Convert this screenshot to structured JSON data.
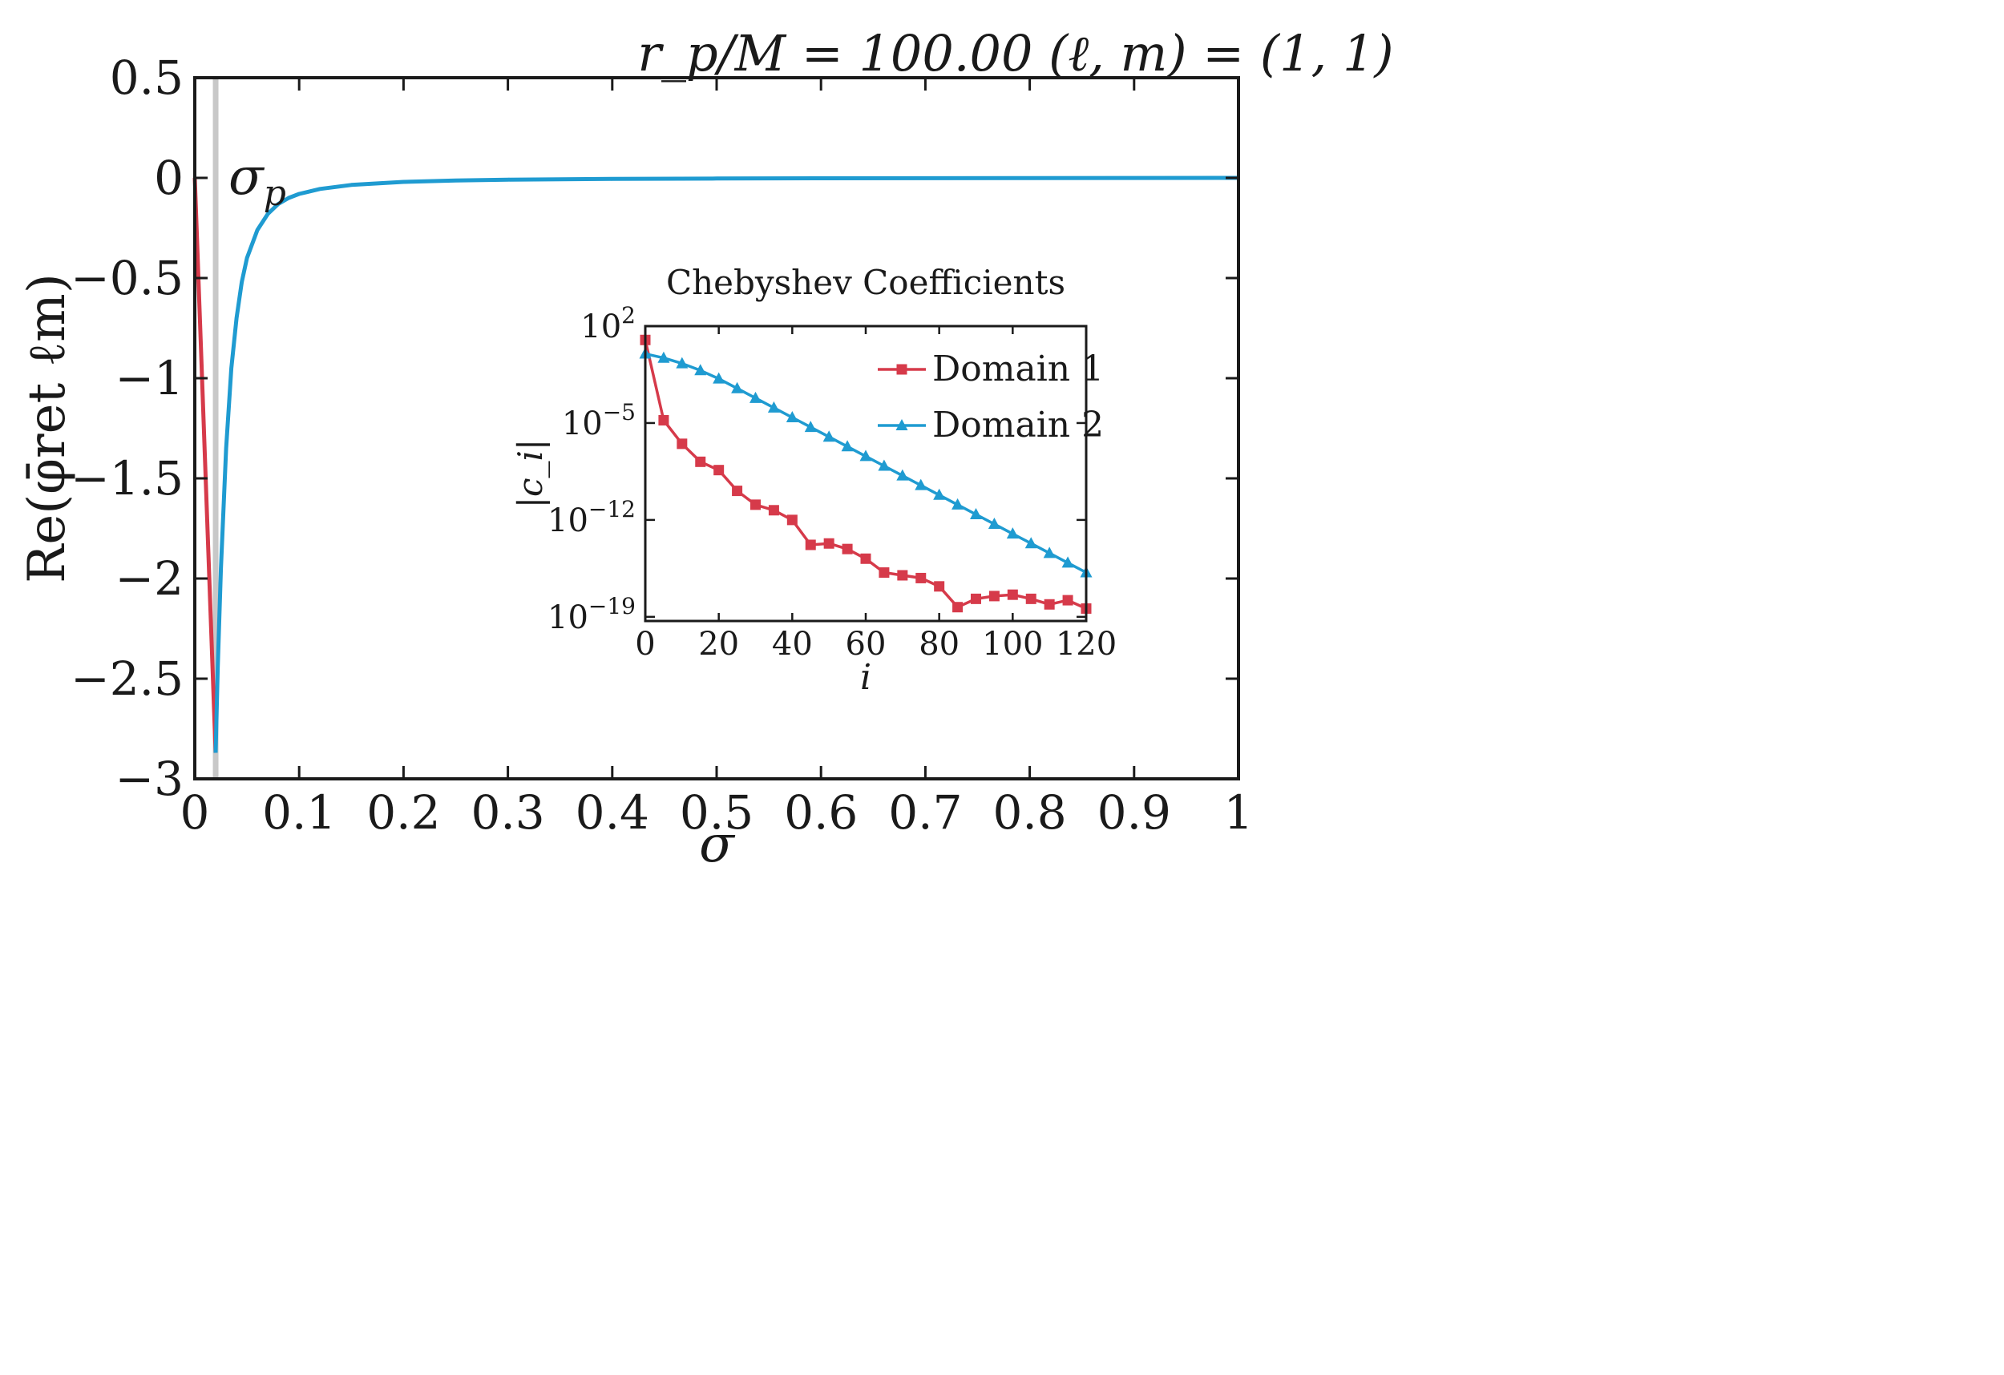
{
  "chart_data": [
    {
      "type": "line",
      "title": "r_p/M = 100.00   (ℓ, m) = (1, 1)",
      "xlabel": "σ",
      "ylabel": "Re(φ̄ret ℓm)",
      "xlim": [
        0,
        1
      ],
      "ylim": [
        -3,
        0.5
      ],
      "xticks": [
        0,
        0.1,
        0.2,
        0.3,
        0.4,
        0.5,
        0.6,
        0.7,
        0.8,
        0.9,
        1
      ],
      "xtick_labels": [
        "0",
        "0.1",
        "0.2",
        "0.3",
        "0.4",
        "0.5",
        "0.6",
        "0.7",
        "0.8",
        "0.9",
        "1"
      ],
      "yticks": [
        0.5,
        0,
        -0.5,
        -1,
        -1.5,
        -2,
        -2.5,
        -3
      ],
      "ytick_labels": [
        "0.5",
        "0",
        "−0.5",
        "−1",
        "−1.5",
        "−2",
        "−2.5",
        "−3"
      ],
      "annotation": {
        "text": "σ",
        "sub": "p",
        "x": 0.02
      },
      "marker_line_x": 0.02,
      "grid": false,
      "series": [
        {
          "name": "Domain 1",
          "color": "#d63a4a",
          "x": [
            0,
            0.02
          ],
          "y": [
            0,
            -2.87
          ]
        },
        {
          "name": "Domain 2",
          "color": "#1f9bd1",
          "x": [
            0.02,
            0.022,
            0.025,
            0.03,
            0.035,
            0.04,
            0.045,
            0.05,
            0.06,
            0.07,
            0.08,
            0.09,
            0.1,
            0.12,
            0.15,
            0.2,
            0.25,
            0.3,
            0.4,
            0.5,
            0.6,
            0.7,
            0.8,
            0.9,
            1.0
          ],
          "y": [
            -2.87,
            -2.45,
            -1.95,
            -1.35,
            -0.95,
            -0.7,
            -0.52,
            -0.4,
            -0.26,
            -0.18,
            -0.13,
            -0.1,
            -0.08,
            -0.055,
            -0.035,
            -0.02,
            -0.013,
            -0.009,
            -0.005,
            -0.003,
            -0.002,
            -0.0015,
            -0.001,
            -0.0005,
            0
          ]
        }
      ]
    },
    {
      "type": "line",
      "title": "Chebyshev Coefficients",
      "xlabel": "i",
      "ylabel": "|c_i|",
      "yscale": "log",
      "xlim": [
        0,
        120
      ],
      "ylim_log10": [
        -19.3,
        2
      ],
      "xticks": [
        0,
        20,
        40,
        60,
        80,
        100,
        120
      ],
      "xtick_labels": [
        "0",
        "20",
        "40",
        "60",
        "80",
        "100",
        "120"
      ],
      "yticks_log10": [
        2,
        -5,
        -12,
        -19
      ],
      "ytick_labels": [
        {
          "base": "10",
          "exp": "2"
        },
        {
          "base": "10",
          "exp": "−5"
        },
        {
          "base": "10",
          "exp": "−12"
        },
        {
          "base": "10",
          "exp": "−19"
        }
      ],
      "legend_position": "top-right",
      "series": [
        {
          "name": "Domain 1",
          "label": "Domain 1",
          "color": "#d63a4a",
          "marker": "square",
          "x": [
            0,
            5,
            10,
            15,
            20,
            25,
            30,
            35,
            40,
            45,
            50,
            55,
            60,
            65,
            70,
            75,
            80,
            85,
            90,
            95,
            100,
            105,
            110,
            115,
            120
          ],
          "log10_values": [
            1.0,
            -4.8,
            -6.5,
            -7.8,
            -8.4,
            -9.9,
            -10.9,
            -11.3,
            -12.0,
            -13.8,
            -13.7,
            -14.1,
            -14.8,
            -15.8,
            -16.0,
            -16.2,
            -16.8,
            -18.3,
            -17.7,
            -17.5,
            -17.4,
            -17.7,
            -18.1,
            -17.8,
            -18.4
          ]
        },
        {
          "name": "Domain 2",
          "label": "Domain 2",
          "color": "#1f9bd1",
          "marker": "triangle",
          "x": [
            0,
            5,
            10,
            15,
            20,
            25,
            30,
            35,
            40,
            45,
            50,
            55,
            60,
            65,
            70,
            75,
            80,
            85,
            90,
            95,
            100,
            105,
            110,
            115,
            120
          ],
          "log10_values": [
            0.0,
            -0.3,
            -0.7,
            -1.2,
            -1.8,
            -2.5,
            -3.2,
            -3.9,
            -4.6,
            -5.3,
            -6.0,
            -6.7,
            -7.4,
            -8.1,
            -8.8,
            -9.5,
            -10.2,
            -10.9,
            -11.6,
            -12.3,
            -13.0,
            -13.7,
            -14.4,
            -15.1,
            -15.8
          ]
        }
      ]
    }
  ]
}
